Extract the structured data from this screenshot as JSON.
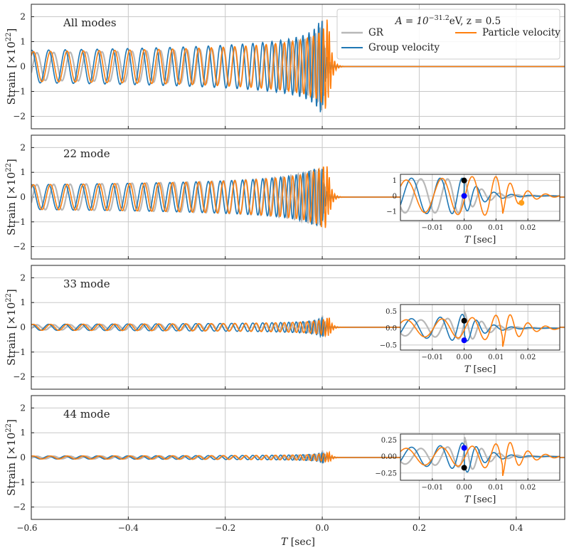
{
  "colors": {
    "gr": "#b8b8b8",
    "group": "#1f77b4",
    "particle": "#ff7f0e",
    "grid": "#c8c8c8"
  },
  "legend": {
    "title_parts": [
      "A = 10",
      "−31.2",
      "eV, z = 0.5"
    ],
    "items": [
      "GR",
      "Group velocity",
      "Particle velocity"
    ],
    "location": "top-right"
  },
  "x_axis": {
    "label": "T [sec]",
    "ticks": [
      "−0.6",
      "−0.4",
      "−0.2",
      "0.0",
      "0.2",
      "0.4"
    ]
  },
  "y_axis": {
    "label": "Strain [×10",
    "label_exp": "22",
    "label_end": "]",
    "ticks": [
      "−2",
      "−1",
      "0",
      "1",
      "2"
    ]
  },
  "chart_data": [
    {
      "type": "line",
      "title": "All modes",
      "xlim": [
        -0.6,
        0.5
      ],
      "ylim": [
        -2.5,
        2.5
      ],
      "grid": true,
      "series": [
        {
          "name": "GR",
          "amp_start": 0.55,
          "amp_peak": 1.95,
          "merger_t": 0.0,
          "color": "gr"
        },
        {
          "name": "Group velocity",
          "amp_start": 0.65,
          "amp_peak": 1.85,
          "merger_t": 0.0,
          "color": "group"
        },
        {
          "name": "Particle velocity",
          "amp_start": 0.6,
          "amp_peak": 2.2,
          "merger_t": 0.012,
          "color": "particle"
        }
      ]
    },
    {
      "type": "line",
      "title": "22 mode",
      "xlim": [
        -0.6,
        0.5
      ],
      "ylim": [
        -2.5,
        2.5
      ],
      "grid": true,
      "series": [
        {
          "name": "GR",
          "amp_start": 0.5,
          "amp_peak": 1.1,
          "merger_t": 0.0,
          "color": "gr"
        },
        {
          "name": "Group velocity",
          "amp_start": 0.5,
          "amp_peak": 1.15,
          "merger_t": 0.0,
          "color": "group"
        },
        {
          "name": "Particle velocity",
          "amp_start": 0.5,
          "amp_peak": 1.25,
          "merger_t": 0.012,
          "color": "particle"
        }
      ],
      "inset": {
        "xlim": [
          -0.02,
          0.03
        ],
        "ylim": [
          -1.6,
          1.4
        ],
        "xticks": [
          "−0.01",
          "0.00",
          "0.01",
          "0.02"
        ],
        "yticks": [
          "1",
          "0",
          "−1"
        ],
        "xlabel": "T [sec]",
        "markers": [
          {
            "series": "GR",
            "x": 0.0,
            "y": 1.0,
            "color": "#000000"
          },
          {
            "series": "Group velocity",
            "x": 0.0,
            "y": 0.0,
            "color": "#0000ff"
          },
          {
            "series": "Particle velocity",
            "x": 0.018,
            "y": -0.45,
            "color": "#ff9f1a"
          }
        ]
      }
    },
    {
      "type": "line",
      "title": "33 mode",
      "xlim": [
        -0.6,
        0.5
      ],
      "ylim": [
        -2.5,
        2.5
      ],
      "grid": true,
      "series": [
        {
          "name": "GR",
          "amp_start": 0.1,
          "amp_peak": 0.5,
          "merger_t": 0.0,
          "color": "gr"
        },
        {
          "name": "Group velocity",
          "amp_start": 0.12,
          "amp_peak": 0.45,
          "merger_t": 0.0,
          "color": "group"
        },
        {
          "name": "Particle velocity",
          "amp_start": 0.12,
          "amp_peak": 0.6,
          "merger_t": 0.012,
          "color": "particle"
        }
      ],
      "inset": {
        "xlim": [
          -0.02,
          0.03
        ],
        "ylim": [
          -0.65,
          0.7
        ],
        "xticks": [
          "−0.01",
          "0.00",
          "0.01",
          "0.02"
        ],
        "yticks": [
          "0.5",
          "0.0",
          "−0.5"
        ],
        "xlabel": "T [sec]",
        "markers": [
          {
            "series": "GR",
            "x": 0.0,
            "y": 0.22,
            "color": "#000000"
          },
          {
            "series": "Group velocity",
            "x": 0.0,
            "y": -0.36,
            "color": "#0000ff"
          }
        ]
      }
    },
    {
      "type": "line",
      "title": "44 mode",
      "xlim": [
        -0.6,
        0.5
      ],
      "ylim": [
        -2.5,
        2.5
      ],
      "grid": true,
      "series": [
        {
          "name": "GR",
          "amp_start": 0.05,
          "amp_peak": 0.3,
          "merger_t": 0.0,
          "color": "gr"
        },
        {
          "name": "Group velocity",
          "amp_start": 0.06,
          "amp_peak": 0.28,
          "merger_t": 0.0,
          "color": "group"
        },
        {
          "name": "Particle velocity",
          "amp_start": 0.06,
          "amp_peak": 0.32,
          "merger_t": 0.012,
          "color": "particle"
        }
      ],
      "inset": {
        "xlim": [
          -0.02,
          0.03
        ],
        "ylim": [
          -0.36,
          0.34
        ],
        "xticks": [
          "−0.01",
          "0.00",
          "0.01",
          "0.02"
        ],
        "yticks": [
          "0.25",
          "0.00",
          "−0.25"
        ],
        "xlabel": "T [sec]",
        "markers": [
          {
            "series": "GR",
            "x": 0.0,
            "y": -0.17,
            "color": "#000000"
          },
          {
            "series": "Group velocity",
            "x": 0.0,
            "y": 0.13,
            "color": "#0000ff"
          }
        ]
      }
    }
  ]
}
